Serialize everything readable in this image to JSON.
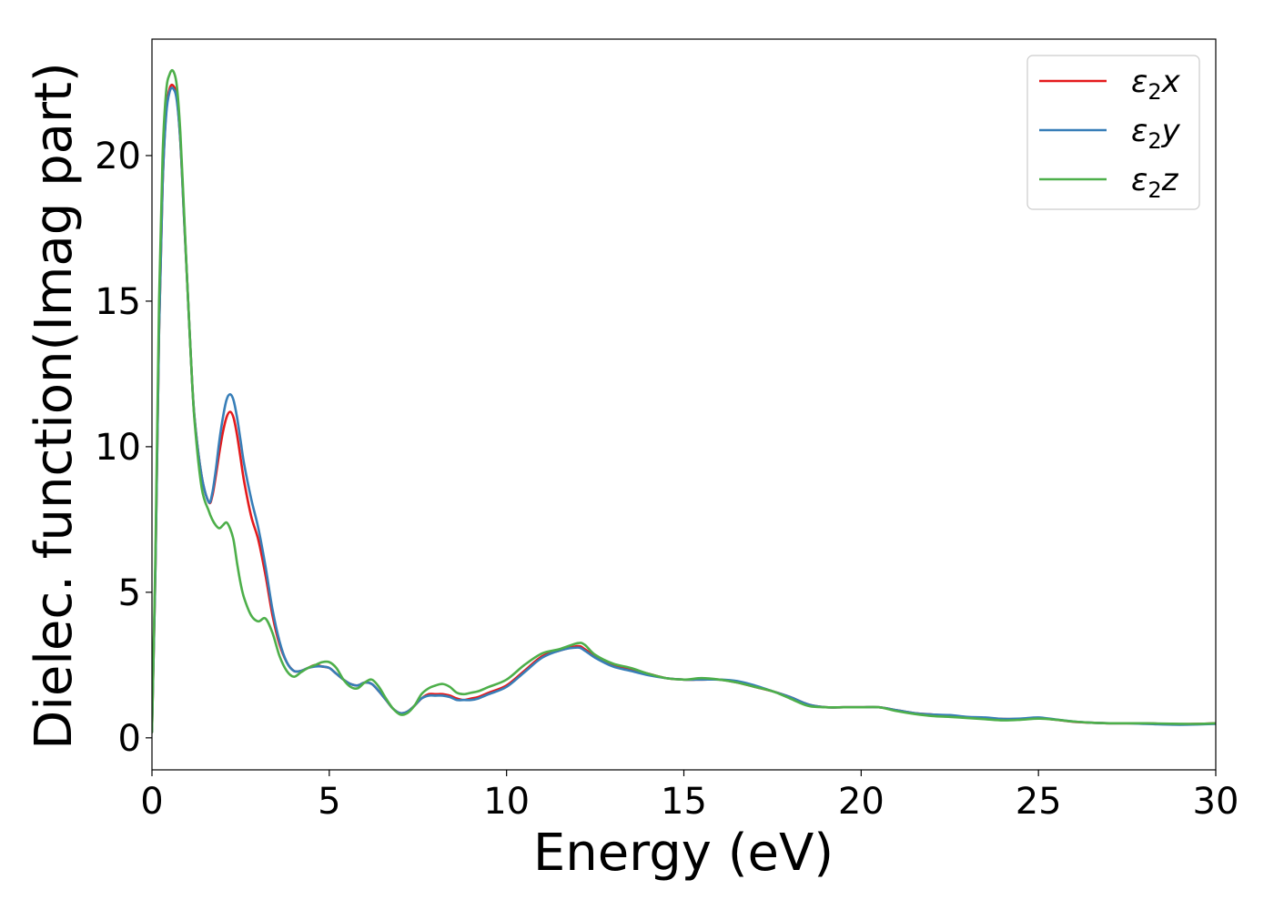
{
  "chart_data": {
    "type": "line",
    "title": "",
    "xlabel": "Energy (eV)",
    "ylabel": "Dielec. function(Imag part)",
    "xlim": [
      0,
      30
    ],
    "ylim": [
      -1.1,
      24
    ],
    "xticks": [
      "0",
      "5",
      "10",
      "15",
      "20",
      "25",
      "30"
    ],
    "yticks": [
      "0",
      "5",
      "10",
      "15",
      "20"
    ],
    "grid": false,
    "legend_position": "top-right",
    "series": [
      {
        "name": "ε₂x",
        "label_base": "ε",
        "label_sub": "2",
        "label_suffix": "x",
        "color": "#e41a1c",
        "x": [
          0,
          0.1,
          0.2,
          0.3,
          0.4,
          0.5,
          0.6,
          0.7,
          0.8,
          0.9,
          1.0,
          1.1,
          1.2,
          1.4,
          1.6,
          1.7,
          1.8,
          1.9,
          2.0,
          2.1,
          2.2,
          2.3,
          2.4,
          2.5,
          2.6,
          2.8,
          3.0,
          3.2,
          3.4,
          3.6,
          3.8,
          4.0,
          4.2,
          4.4,
          4.6,
          4.8,
          5.0,
          5.2,
          5.4,
          5.6,
          5.8,
          6.0,
          6.2,
          6.4,
          6.6,
          6.8,
          7.0,
          7.2,
          7.4,
          7.6,
          7.8,
          8.0,
          8.2,
          8.4,
          8.6,
          8.8,
          9.0,
          9.2,
          9.5,
          10.0,
          10.5,
          11.0,
          11.5,
          12.0,
          12.2,
          12.5,
          13.0,
          13.5,
          14.0,
          14.5,
          15.0,
          15.5,
          16.0,
          16.5,
          17.0,
          17.5,
          18.0,
          18.5,
          19.0,
          19.5,
          20.0,
          20.5,
          21.0,
          21.5,
          22.0,
          22.5,
          23.0,
          23.5,
          24.0,
          24.5,
          25.0,
          25.5,
          26.0,
          26.5,
          27.0,
          27.5,
          28.0,
          28.5,
          29.0,
          29.5,
          30.0
        ],
        "y": [
          0.2,
          6.0,
          14.0,
          19.0,
          21.5,
          22.3,
          22.4,
          22.0,
          20.5,
          18.0,
          15.5,
          13.0,
          11.0,
          9.0,
          8.1,
          8.3,
          9.0,
          9.8,
          10.5,
          11.0,
          11.2,
          11.0,
          10.4,
          9.6,
          8.8,
          7.6,
          6.8,
          5.6,
          4.2,
          3.2,
          2.6,
          2.3,
          2.3,
          2.4,
          2.5,
          2.45,
          2.4,
          2.2,
          2.0,
          1.85,
          1.8,
          1.9,
          1.85,
          1.6,
          1.3,
          1.0,
          0.85,
          0.9,
          1.1,
          1.35,
          1.5,
          1.5,
          1.5,
          1.45,
          1.35,
          1.3,
          1.35,
          1.4,
          1.55,
          1.8,
          2.3,
          2.8,
          3.0,
          3.15,
          3.05,
          2.8,
          2.5,
          2.35,
          2.2,
          2.05,
          2.0,
          2.0,
          2.0,
          1.9,
          1.75,
          1.6,
          1.4,
          1.15,
          1.05,
          1.05,
          1.05,
          1.05,
          0.95,
          0.85,
          0.8,
          0.75,
          0.7,
          0.68,
          0.65,
          0.65,
          0.68,
          0.62,
          0.55,
          0.52,
          0.5,
          0.5,
          0.5,
          0.48,
          0.47,
          0.48,
          0.5
        ]
      },
      {
        "name": "ε₂y",
        "label_base": "ε",
        "label_sub": "2",
        "label_suffix": "y",
        "color": "#377eb8",
        "x": [
          0,
          0.1,
          0.2,
          0.3,
          0.4,
          0.5,
          0.6,
          0.7,
          0.8,
          0.9,
          1.0,
          1.1,
          1.2,
          1.4,
          1.6,
          1.7,
          1.8,
          1.9,
          2.0,
          2.1,
          2.2,
          2.3,
          2.4,
          2.5,
          2.6,
          2.8,
          3.0,
          3.2,
          3.4,
          3.6,
          3.8,
          4.0,
          4.2,
          4.4,
          4.6,
          4.8,
          5.0,
          5.2,
          5.4,
          5.6,
          5.8,
          6.0,
          6.2,
          6.4,
          6.6,
          6.8,
          7.0,
          7.2,
          7.4,
          7.6,
          7.8,
          8.0,
          8.2,
          8.4,
          8.6,
          8.8,
          9.0,
          9.2,
          9.5,
          10.0,
          10.5,
          11.0,
          11.5,
          12.0,
          12.2,
          12.5,
          13.0,
          13.5,
          14.0,
          14.5,
          15.0,
          15.5,
          16.0,
          16.5,
          17.0,
          17.5,
          18.0,
          18.5,
          19.0,
          19.5,
          20.0,
          20.5,
          21.0,
          21.5,
          22.0,
          22.5,
          23.0,
          23.5,
          24.0,
          24.5,
          25.0,
          25.5,
          26.0,
          26.5,
          27.0,
          27.5,
          28.0,
          28.5,
          29.0,
          29.5,
          30.0
        ],
        "y": [
          0.2,
          6.0,
          14.0,
          19.0,
          21.4,
          22.2,
          22.3,
          21.9,
          20.5,
          18.0,
          15.5,
          13.0,
          11.0,
          9.0,
          8.1,
          8.4,
          9.2,
          10.2,
          11.0,
          11.6,
          11.8,
          11.6,
          11.0,
          10.2,
          9.4,
          8.2,
          7.2,
          5.9,
          4.4,
          3.3,
          2.6,
          2.3,
          2.3,
          2.4,
          2.45,
          2.45,
          2.4,
          2.2,
          2.0,
          1.85,
          1.8,
          1.9,
          1.85,
          1.6,
          1.3,
          1.0,
          0.85,
          0.9,
          1.1,
          1.35,
          1.45,
          1.45,
          1.45,
          1.4,
          1.3,
          1.3,
          1.3,
          1.35,
          1.5,
          1.75,
          2.25,
          2.75,
          3.0,
          3.1,
          3.0,
          2.75,
          2.45,
          2.3,
          2.15,
          2.05,
          2.0,
          2.0,
          2.0,
          1.95,
          1.8,
          1.6,
          1.4,
          1.15,
          1.05,
          1.05,
          1.05,
          1.05,
          0.95,
          0.85,
          0.8,
          0.78,
          0.72,
          0.7,
          0.65,
          0.66,
          0.7,
          0.63,
          0.56,
          0.52,
          0.5,
          0.5,
          0.48,
          0.46,
          0.45,
          0.46,
          0.48
        ]
      },
      {
        "name": "ε₂z",
        "label_base": "ε",
        "label_sub": "2",
        "label_suffix": "z",
        "color": "#4daf4a",
        "x": [
          0,
          0.1,
          0.2,
          0.3,
          0.4,
          0.5,
          0.6,
          0.7,
          0.8,
          0.9,
          1.0,
          1.1,
          1.2,
          1.4,
          1.6,
          1.7,
          1.8,
          1.9,
          2.0,
          2.1,
          2.2,
          2.3,
          2.4,
          2.5,
          2.6,
          2.8,
          3.0,
          3.2,
          3.4,
          3.6,
          3.8,
          4.0,
          4.2,
          4.4,
          4.6,
          4.8,
          5.0,
          5.2,
          5.4,
          5.6,
          5.8,
          6.0,
          6.2,
          6.4,
          6.6,
          6.8,
          7.0,
          7.2,
          7.4,
          7.6,
          7.8,
          8.0,
          8.2,
          8.4,
          8.6,
          8.8,
          9.0,
          9.2,
          9.5,
          10.0,
          10.5,
          11.0,
          11.5,
          12.0,
          12.2,
          12.5,
          13.0,
          13.5,
          14.0,
          14.5,
          15.0,
          15.5,
          16.0,
          16.5,
          17.0,
          17.5,
          18.0,
          18.5,
          19.0,
          19.5,
          20.0,
          20.5,
          21.0,
          21.5,
          22.0,
          22.5,
          23.0,
          23.5,
          24.0,
          24.5,
          25.0,
          25.5,
          26.0,
          26.5,
          27.0,
          27.5,
          28.0,
          28.5,
          29.0,
          29.5,
          30.0
        ],
        "y": [
          0.2,
          6.5,
          15.0,
          20.0,
          22.2,
          22.8,
          22.9,
          22.4,
          20.8,
          18.2,
          15.5,
          13.0,
          10.9,
          8.6,
          7.8,
          7.5,
          7.3,
          7.2,
          7.3,
          7.4,
          7.2,
          6.8,
          6.0,
          5.3,
          4.8,
          4.2,
          4.0,
          4.1,
          3.6,
          2.8,
          2.3,
          2.1,
          2.25,
          2.4,
          2.5,
          2.6,
          2.6,
          2.4,
          2.0,
          1.75,
          1.7,
          1.9,
          2.0,
          1.75,
          1.35,
          1.0,
          0.8,
          0.85,
          1.1,
          1.5,
          1.7,
          1.8,
          1.85,
          1.75,
          1.55,
          1.5,
          1.55,
          1.6,
          1.75,
          2.0,
          2.5,
          2.9,
          3.05,
          3.25,
          3.2,
          2.85,
          2.55,
          2.4,
          2.2,
          2.05,
          2.0,
          2.05,
          2.0,
          1.9,
          1.75,
          1.6,
          1.35,
          1.1,
          1.05,
          1.05,
          1.05,
          1.05,
          0.92,
          0.82,
          0.75,
          0.72,
          0.68,
          0.64,
          0.6,
          0.62,
          0.66,
          0.62,
          0.56,
          0.52,
          0.5,
          0.5,
          0.5,
          0.49,
          0.48,
          0.48,
          0.5
        ]
      }
    ]
  }
}
